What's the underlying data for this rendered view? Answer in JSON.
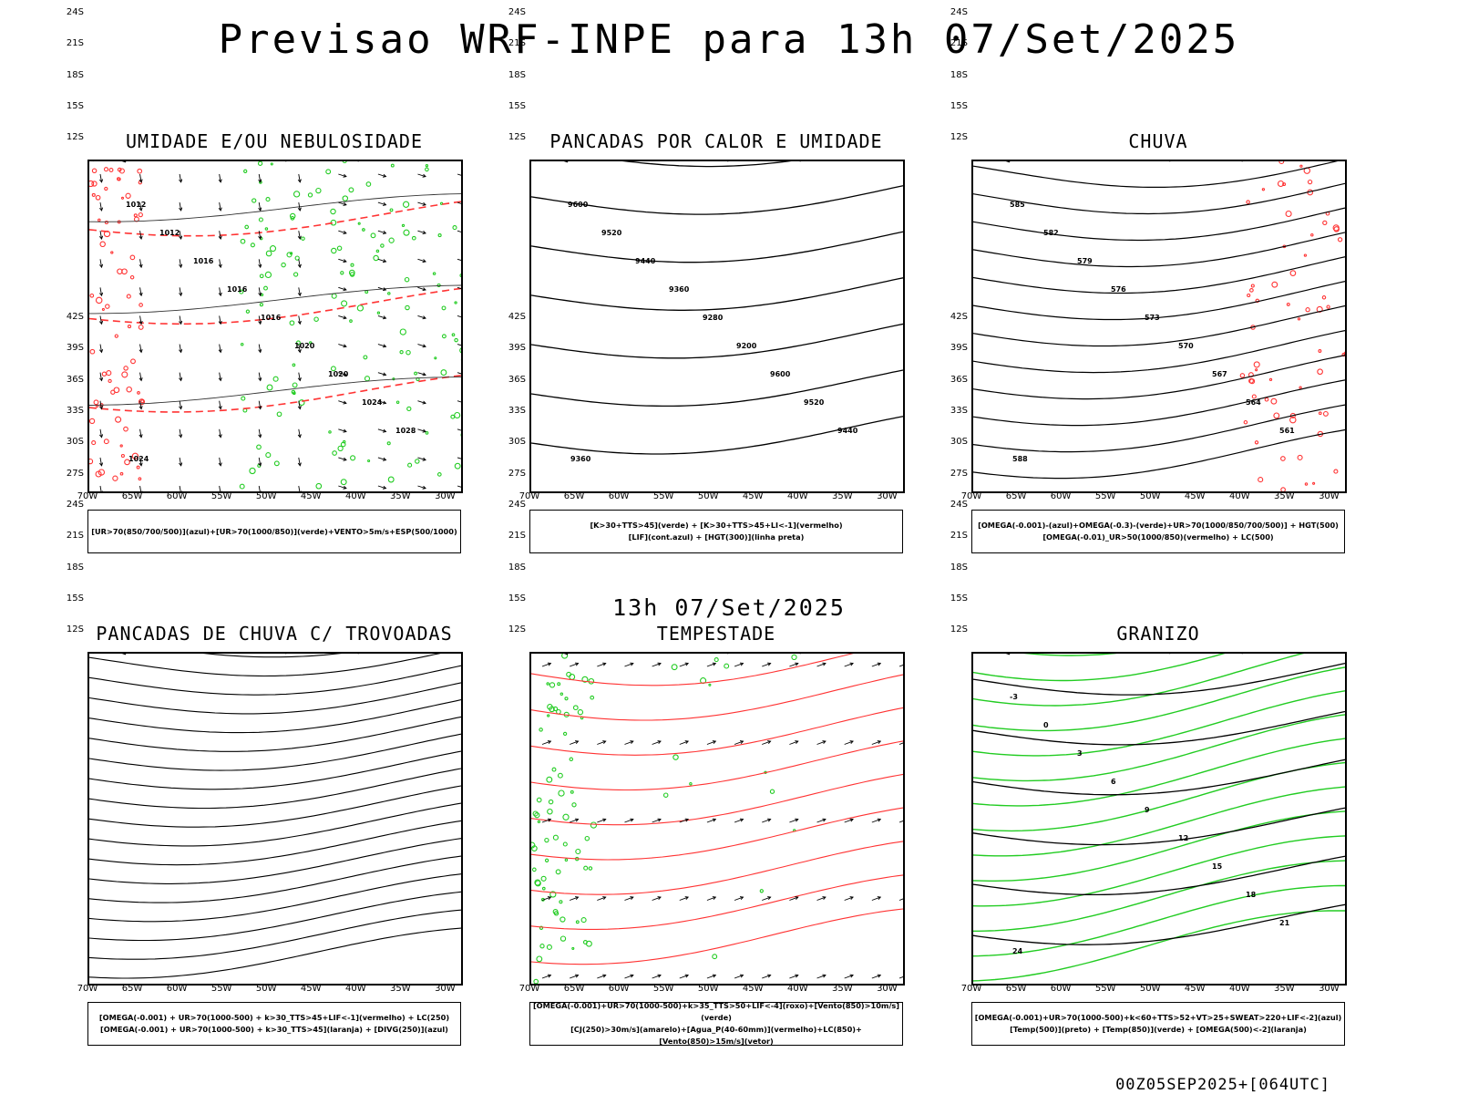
{
  "header": {
    "title": "Previsao WRF-INPE  para 13h 07/Set/2025"
  },
  "mid_label": "13h 07/Set/2025",
  "footer_stamp": "00Z05SEP2025+[064UTC]",
  "axes": {
    "lat_labels": [
      "12S",
      "15S",
      "18S",
      "21S",
      "24S",
      "27S",
      "30S",
      "33S",
      "36S",
      "39S",
      "42S"
    ],
    "lon_labels": [
      "70W",
      "65W",
      "60W",
      "55W",
      "50W",
      "45W",
      "40W",
      "35W",
      "30W"
    ]
  },
  "panels": [
    {
      "id": "umidade",
      "title": "UMIDADE E/OU NEBULOSIDADE",
      "legend": [
        "[UR>70(850/700/500)](azul)+[UR>70(1000/850)](verde)+VENTO>5m/s+ESP(500/1000)"
      ],
      "contour_labels": [
        "1012",
        "1012",
        "1016",
        "1016",
        "1016",
        "1020",
        "1020",
        "1024",
        "1028",
        "1024"
      ]
    },
    {
      "id": "pancadas-calor",
      "title": "PANCADAS POR CALOR E UMIDADE",
      "legend": [
        "[K>30+TTS>45](verde) + [K>30+TTS>45+LI<-1](vermelho)",
        "[LIF](cont.azul) + [HGT(300)](linha preta)"
      ],
      "contour_labels": [
        "9600",
        "9520",
        "9440",
        "9360",
        "9280",
        "9200",
        "9600",
        "9520",
        "9440",
        "9360"
      ]
    },
    {
      "id": "chuva",
      "title": "CHUVA",
      "legend": [
        "[OMEGA(-0.001)-(azul)+OMEGA(-0.3)-(verde)+UR>70(1000/850/700/500)] + HGT(500)",
        "[OMEGA(-0.01)_UR>50(1000/850)(vermelho) + LC(500)"
      ],
      "contour_labels": [
        "585",
        "582",
        "579",
        "576",
        "573",
        "570",
        "567",
        "564",
        "561",
        "588"
      ]
    },
    {
      "id": "pancadas-trovoadas",
      "title": "PANCADAS DE CHUVA C/ TROVOADAS",
      "legend": [
        "[OMEGA(-0.001) + UR>70(1000-500) + k>30_TTS>45+LIF<-1](vermelho) + LC(250)",
        "[OMEGA(-0.001) + UR>70(1000-500) + k>30_TTS>45](laranja) + [DIVG(250)](azul)"
      ],
      "contour_labels": []
    },
    {
      "id": "tempestade",
      "title": "TEMPESTADE",
      "legend": [
        "[OMEGA(-0.001)+UR>70(1000-500)+k>35_TTS>50+LIF<-4](roxo)+[Vento(850)>10m/s](verde)",
        "[CJ(250)>30m/s](amarelo)+[Agua_P(40-60mm)](vermelho)+LC(850)+[Vento(850)>15m/s](vetor)"
      ],
      "contour_labels": []
    },
    {
      "id": "granizo",
      "title": "GRANIZO",
      "legend": [
        "[OMEGA(-0.001)+UR>70(1000-500)+k<60+TTS>52+VT>25+SWEAT>220+LIF<-2](azul)",
        "[Temp(500)](preto) + [Temp(850)](verde) + [OMEGA(500)<-2](laranja)"
      ],
      "contour_labels": [
        "-3",
        "0",
        "3",
        "6",
        "9",
        "12",
        "15",
        "18",
        "21",
        "24"
      ]
    }
  ],
  "colors": {
    "black": "#000000",
    "red": "#ff3333",
    "green": "#22cc22",
    "blue": "#3344ff",
    "lightblue": "#aab0ff",
    "yellow": "#e6dc3a",
    "darkteal": "#1e4a45",
    "orange": "#ff8800"
  }
}
